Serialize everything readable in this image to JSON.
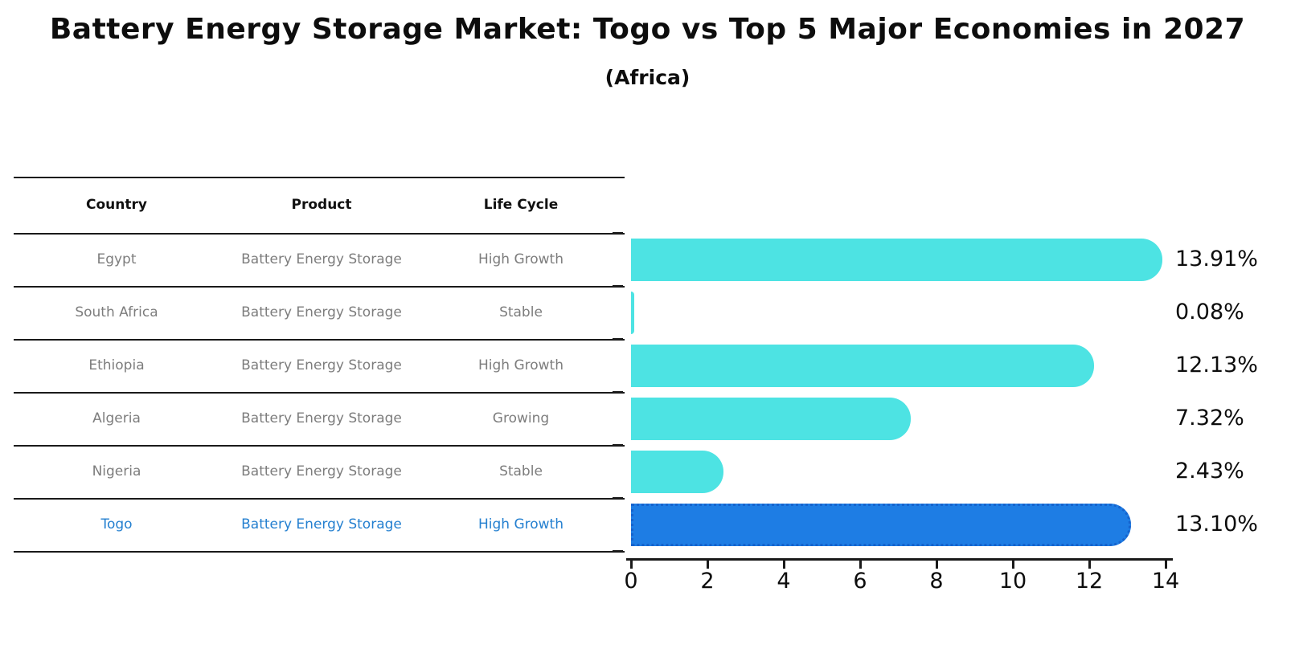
{
  "title": "Battery Energy Storage Market: Togo vs Top 5 Major Economies in 2027",
  "subtitle": "(Africa)",
  "table": {
    "headers": {
      "country": "Country",
      "product": "Product",
      "life_cycle": "Life Cycle"
    },
    "rows": [
      {
        "country": "Egypt",
        "product": "Battery Energy Storage",
        "life_cycle": "High Growth",
        "highlight": false
      },
      {
        "country": "South Africa",
        "product": "Battery Energy Storage",
        "life_cycle": "Stable",
        "highlight": false
      },
      {
        "country": "Ethiopia",
        "product": "Battery Energy Storage",
        "life_cycle": "High Growth",
        "highlight": false
      },
      {
        "country": "Algeria",
        "product": "Battery Energy Storage",
        "life_cycle": "Growing",
        "highlight": false
      },
      {
        "country": "Nigeria",
        "product": "Battery Energy Storage",
        "life_cycle": "Stable",
        "highlight": false
      },
      {
        "country": "Togo",
        "product": "Battery Energy Storage",
        "life_cycle": "High Growth",
        "highlight": true
      }
    ]
  },
  "chart_data": {
    "type": "bar",
    "orientation": "horizontal",
    "title": "Battery Energy Storage Market: Togo vs Top 5 Major Economies in 2027 (Africa)",
    "categories": [
      "Egypt",
      "South Africa",
      "Ethiopia",
      "Algeria",
      "Nigeria",
      "Togo"
    ],
    "values": [
      13.91,
      0.08,
      12.13,
      7.32,
      2.43,
      13.1
    ],
    "value_labels": [
      "13.91%",
      "0.08%",
      "12.13%",
      "7.32%",
      "2.43%",
      "13.10%"
    ],
    "unit": "%",
    "xlim": [
      0,
      14
    ],
    "xticks": [
      "0",
      "2",
      "4",
      "6",
      "8",
      "10",
      "12",
      "14"
    ],
    "grid": false,
    "legend": false,
    "bar_color": "#4DE3E3",
    "highlight_index": 5,
    "highlight_bar_color": "#1E7DE4",
    "highlight_border_color": "#1663CD",
    "highlight_text_color": "#2580D0"
  },
  "colors": {
    "bar": "#4DE3E3",
    "highlight_bar": "#1E7DE4",
    "highlight_border": "#1663CD",
    "highlight_text": "#2580D0",
    "body_text": "#7D7D7D",
    "axis": "#1A1A1A"
  }
}
